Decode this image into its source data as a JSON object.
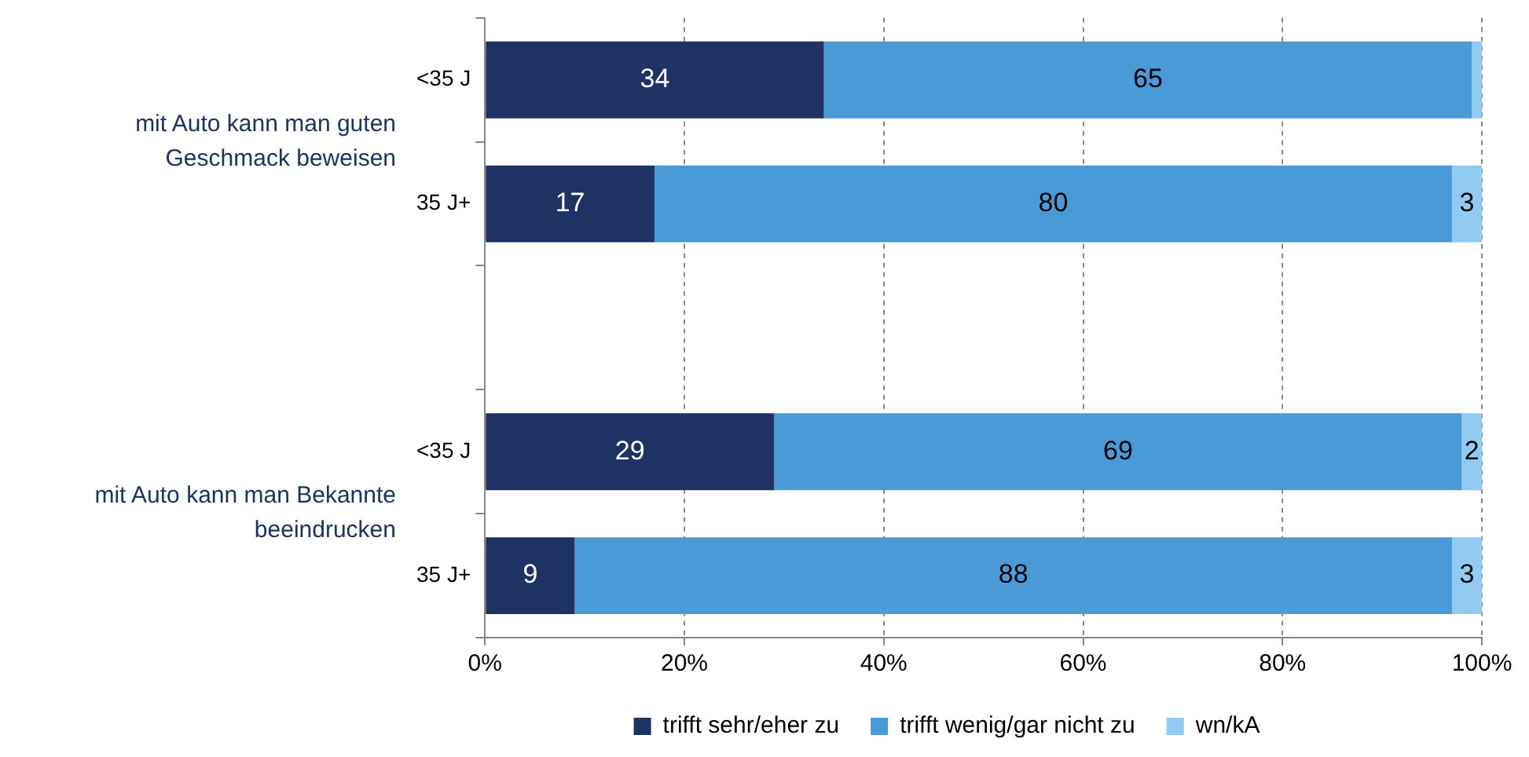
{
  "chart_data": {
    "type": "bar",
    "orientation": "horizontal",
    "stacked": true,
    "categories": [
      "<35 J",
      "35 J+",
      null,
      "<35 J",
      "35 J+"
    ],
    "series": [
      {
        "name": "trifft sehr/eher zu",
        "color": "#1f3264",
        "values": [
          34,
          17,
          null,
          29,
          9
        ],
        "value_labels": [
          "34",
          "17",
          null,
          "29",
          "9"
        ]
      },
      {
        "name": "trifft wenig/gar nicht zu",
        "color": "#4a9ad8",
        "values": [
          65,
          80,
          null,
          69,
          88
        ],
        "value_labels": [
          "65",
          "80",
          null,
          "69",
          "88"
        ]
      },
      {
        "name": "wn/kA",
        "color": "#92cbf2",
        "values": [
          1,
          3,
          null,
          2,
          3
        ],
        "value_labels": [
          null,
          "3",
          null,
          "2",
          "3"
        ]
      }
    ],
    "xlim": [
      0,
      100
    ],
    "xticks": [
      {
        "value": 0,
        "label": "0%"
      },
      {
        "value": 20,
        "label": "20%"
      },
      {
        "value": 40,
        "label": "40%"
      },
      {
        "value": 60,
        "label": "60%"
      },
      {
        "value": 80,
        "label": "80%"
      },
      {
        "value": 100,
        "label": "100%"
      }
    ],
    "grid": "x",
    "legend": "bottom",
    "annotations": [
      "mit Auto kann man guten Geschmack beweisen",
      "mit Auto kann man Bekannte beeindrucken"
    ]
  }
}
